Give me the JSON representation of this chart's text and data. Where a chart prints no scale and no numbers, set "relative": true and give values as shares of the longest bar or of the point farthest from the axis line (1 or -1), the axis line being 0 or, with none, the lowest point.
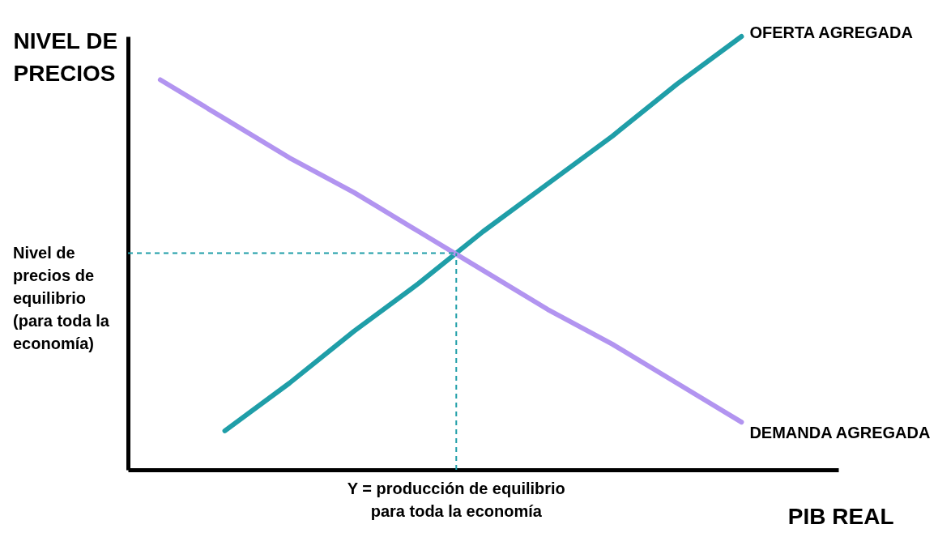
{
  "chart_data": {
    "type": "line",
    "relative": true,
    "xlabel": "PIB REAL",
    "ylabel": "NIVEL DE PRECIOS",
    "categories": [
      null,
      null,
      null,
      null,
      null,
      null,
      null,
      null,
      null,
      null,
      null
    ],
    "series": [
      {
        "name": "OFERTA AGREGADA",
        "color": "#1f9ea8",
        "values": [
          null,
          0.09,
          0.2,
          0.32,
          0.43,
          0.55,
          0.66,
          0.77,
          0.89,
          1,
          null
        ]
      },
      {
        "name": "DEMANDA AGREGADA",
        "color": "#b294f0",
        "values": [
          0.9,
          0.81,
          0.72,
          0.64,
          0.55,
          0.46,
          0.37,
          0.29,
          0.2,
          0.11,
          null
        ]
      }
    ],
    "ref_lines": [
      {
        "axis": "y",
        "value": 0.5,
        "label": "Nivel de precios de equilibrio (para toda la economía)",
        "color": "#1f9ea8",
        "line_style": "dashed"
      }
    ],
    "annotations": [
      {
        "text": "Y = producción de equilibrio para toda la economía",
        "y": 0.5
      }
    ]
  }
}
